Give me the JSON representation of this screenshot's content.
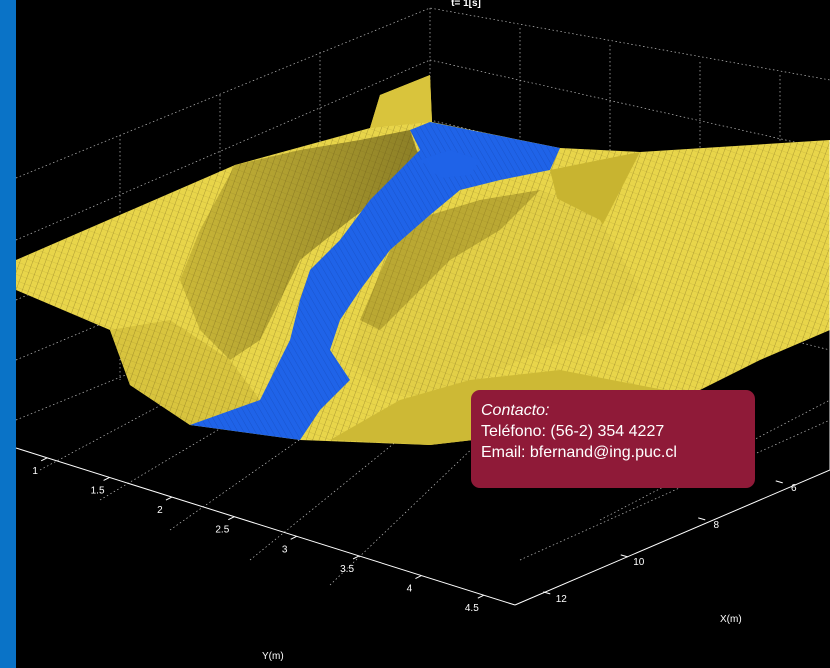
{
  "chart_data": {
    "type": "surface-3d",
    "title": "t= 1[s]",
    "xlabel": "X(m)",
    "ylabel": "Y(m)",
    "x_ticks": [
      6,
      8,
      10,
      12
    ],
    "y_ticks": [
      1,
      1.5,
      2,
      2.5,
      3,
      3.5,
      4,
      4.5
    ],
    "grid": true,
    "colors": {
      "terrain": "#e8d54a",
      "terrain_dark": "#9c8a1e",
      "water": "#1f63e8",
      "mesh": "#5a4a10"
    }
  },
  "contact": {
    "heading": "Contacto:",
    "phone": "Teléfono: (56-2) 354 4227",
    "email": "Email: bfernand@ing.puc.cl",
    "background": "#8f1a38"
  },
  "page": {
    "accent_bar": "#0a73c7",
    "background": "#000000"
  }
}
